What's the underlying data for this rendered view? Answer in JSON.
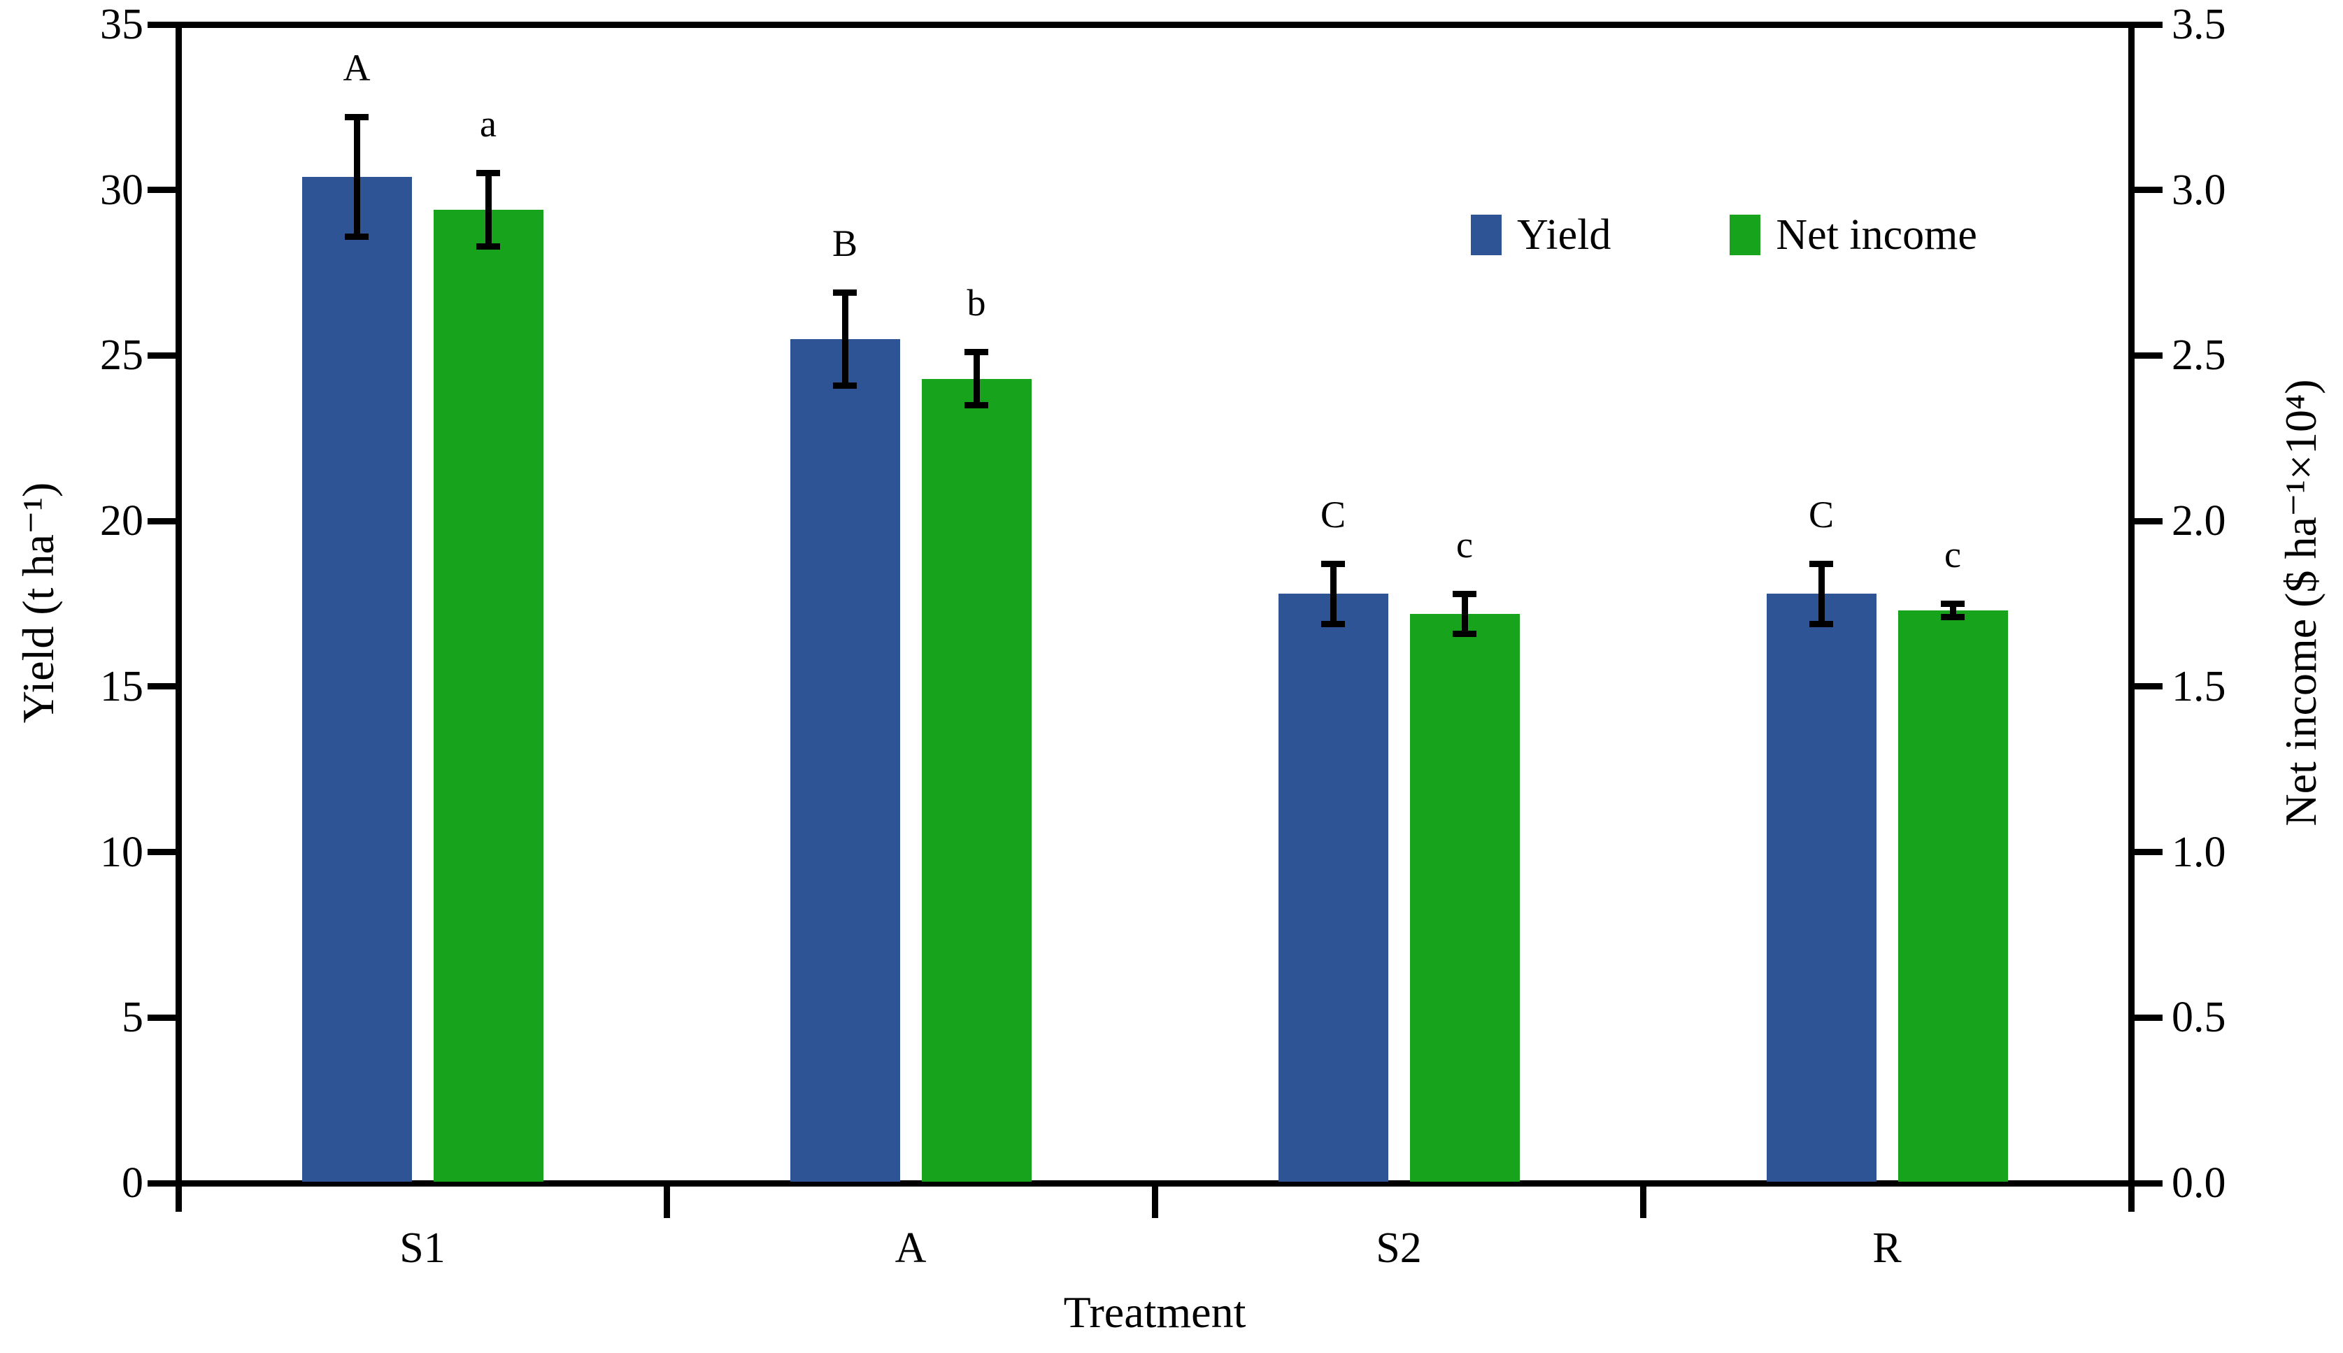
{
  "figure": {
    "background": "#FFFFFF",
    "axis_color": "#000000"
  },
  "chart_data": {
    "type": "bar",
    "title": "",
    "categories": [
      "S1",
      "A",
      "S2",
      "R"
    ],
    "series": [
      {
        "name": "Yield",
        "axis": "left",
        "color": "#2F5496",
        "values": [
          30.4,
          25.5,
          17.8,
          17.8
        ],
        "errors": [
          1.9,
          1.5,
          1.0,
          1.0
        ],
        "sig_letters": [
          "A",
          "B",
          "C",
          "C"
        ]
      },
      {
        "name": "Net income",
        "axis": "right",
        "color": "#17A31B",
        "values": [
          2.94,
          2.43,
          1.72,
          1.73
        ],
        "errors": [
          0.12,
          0.09,
          0.07,
          0.03
        ],
        "sig_letters": [
          "a",
          "b",
          "c",
          "c"
        ]
      }
    ],
    "xlabel": "Treatment",
    "left_axis": {
      "label": "Yield (t ha⁻¹)",
      "min": 0,
      "max": 35,
      "ticks": [
        "0",
        "5",
        "10",
        "15",
        "20",
        "25",
        "30",
        "35"
      ]
    },
    "right_axis": {
      "label": "Net income ($ ha⁻¹×10⁴)",
      "min": 0,
      "max": 3.5,
      "ticks": [
        "0.0",
        "0.5",
        "1.0",
        "1.5",
        "2.0",
        "2.5",
        "3.0",
        "3.5"
      ]
    },
    "legend": {
      "position": "inside-top-right",
      "items": [
        "Yield",
        "Net income"
      ]
    },
    "grid": false,
    "error_bars": true
  }
}
